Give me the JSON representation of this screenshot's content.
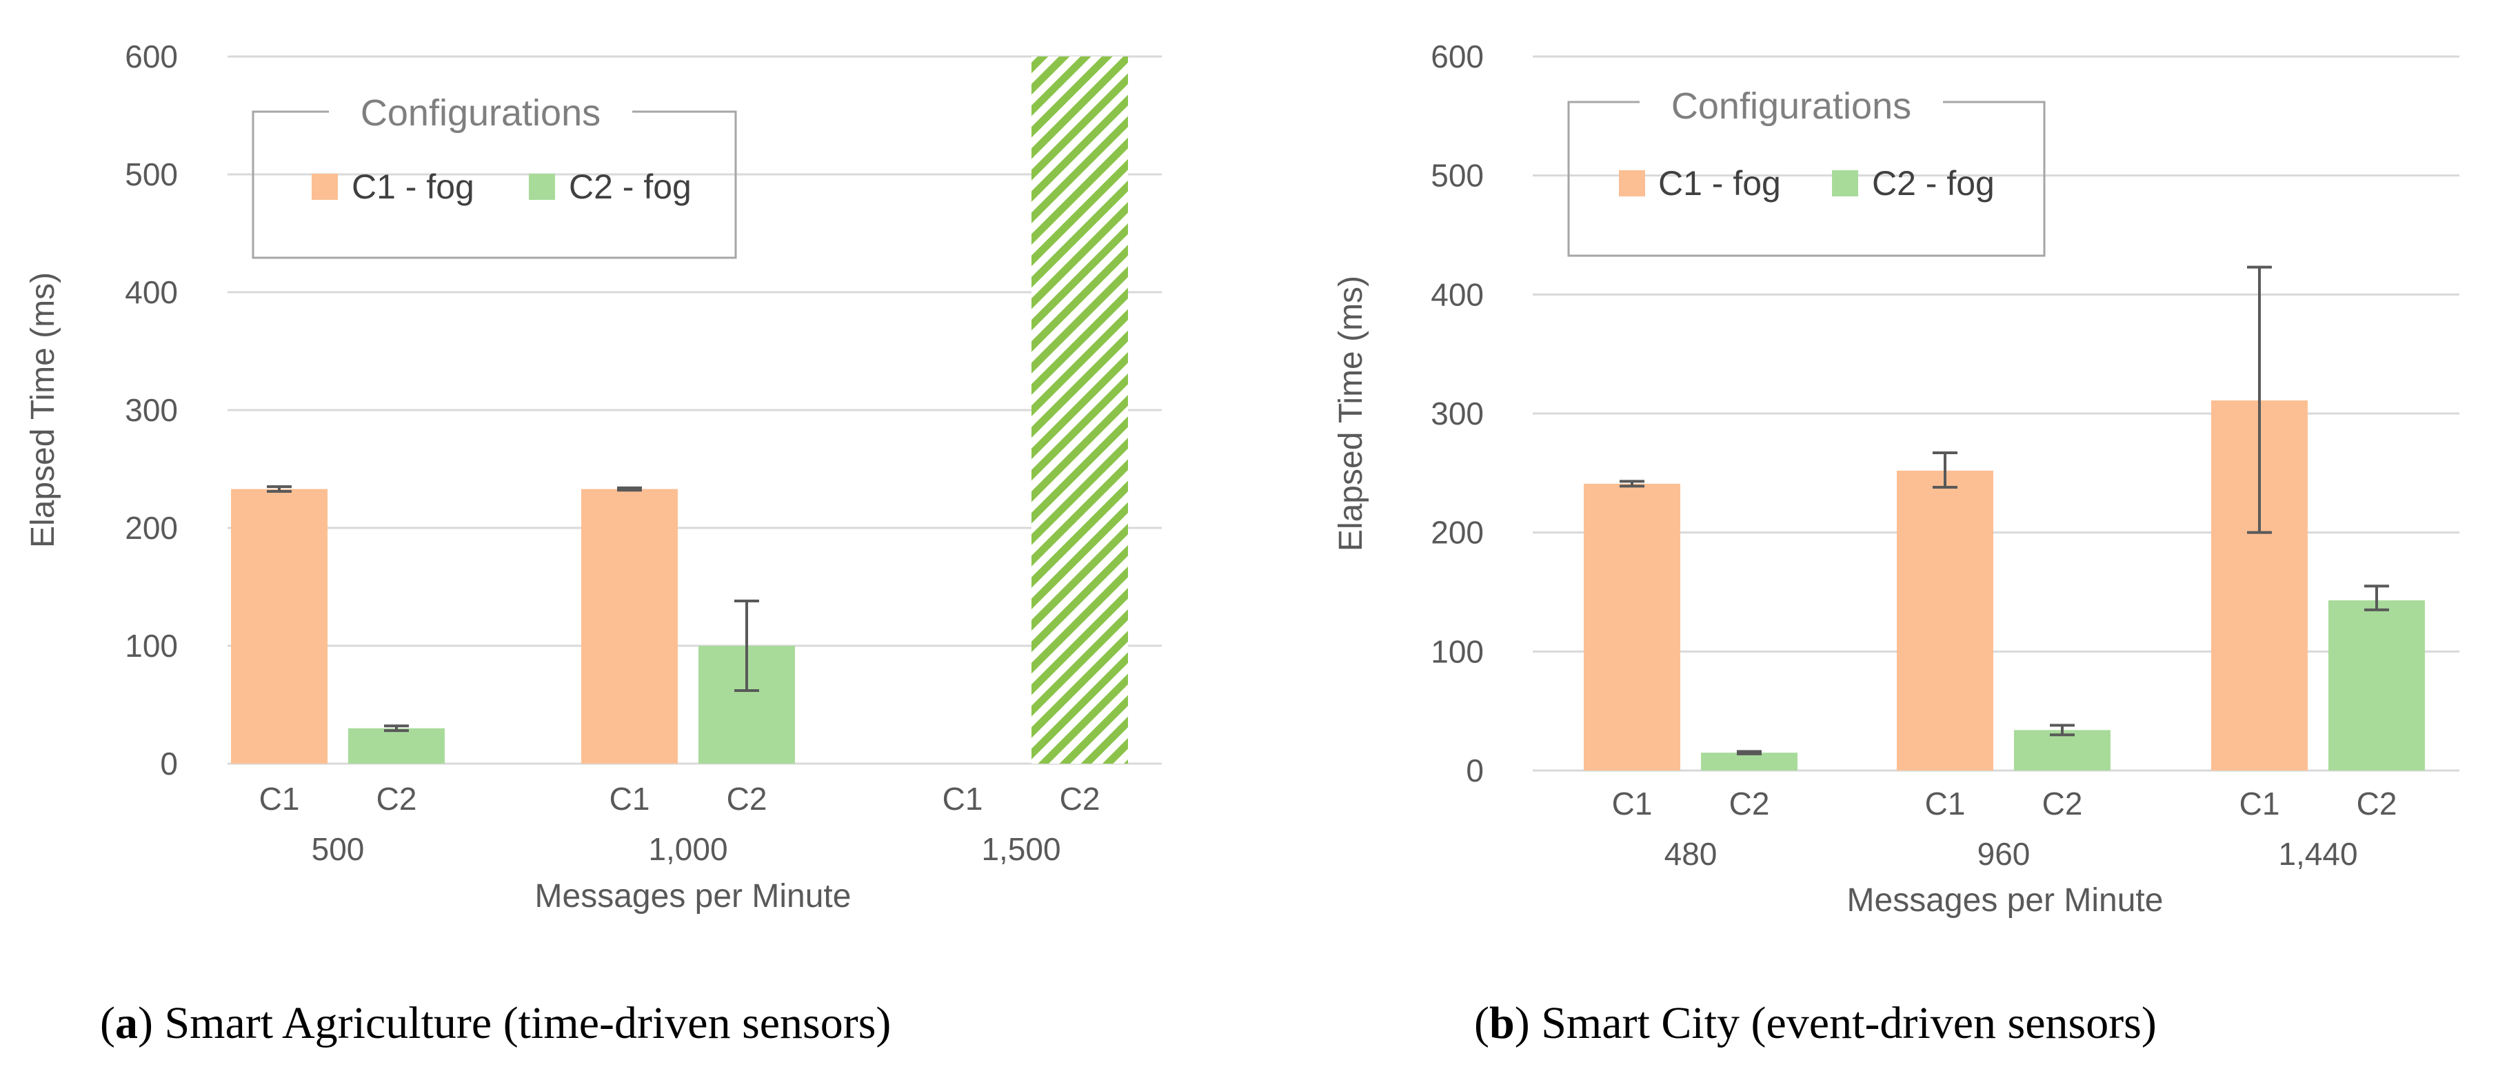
{
  "colors": {
    "c1_fog": "#FCBF93",
    "c2_fog": "#A8DB9A",
    "hatch": "#8BC34A",
    "grid": "#D9D9D9",
    "axis_text": "#595959",
    "error_bar": "#595959"
  },
  "chart_data": [
    {
      "type": "bar",
      "id": "a",
      "caption_letter": "a",
      "caption_text": " Smart Agriculture (time-driven sensors)",
      "xlabel": "Messages per Minute",
      "ylabel": "Elapsed Time (ms)",
      "ylim": [
        0,
        600
      ],
      "yticks": [
        0,
        100,
        200,
        300,
        400,
        500,
        600
      ],
      "grid": true,
      "legend": {
        "title": "Configurations",
        "placement": "top-left",
        "entries": [
          {
            "label": "C1 - fog",
            "color": "#FCBF93"
          },
          {
            "label": "C2 - fog",
            "color": "#A8DB9A"
          }
        ]
      },
      "groups": [
        {
          "label": "500",
          "bars": [
            {
              "sub": "C1",
              "series": "C1 - fog",
              "value": 233,
              "err_low": 231,
              "err_high": 235
            },
            {
              "sub": "C2",
              "series": "C2 - fog",
              "value": 30,
              "err_low": 28,
              "err_high": 32
            }
          ]
        },
        {
          "label": "1,000",
          "bars": [
            {
              "sub": "C1",
              "series": "C1 - fog",
              "value": 233,
              "err_low": 232,
              "err_high": 234
            },
            {
              "sub": "C2",
              "series": "C2 - fog",
              "value": 100,
              "err_low": 62,
              "err_high": 138
            }
          ]
        },
        {
          "label": "1,500",
          "bars": [
            {
              "sub": "C1",
              "series": "C1 - fog",
              "value": null
            },
            {
              "sub": "C2",
              "series": "C2 - fog",
              "value": 600,
              "hatched": true
            }
          ]
        }
      ]
    },
    {
      "type": "bar",
      "id": "b",
      "caption_letter": "b",
      "caption_text": " Smart City (event-driven sensors)",
      "xlabel": "Messages per Minute",
      "ylabel": "Elapsed Time (ms)",
      "ylim": [
        0,
        600
      ],
      "yticks": [
        0,
        100,
        200,
        300,
        400,
        500,
        600
      ],
      "grid": true,
      "legend": {
        "title": "Configurations",
        "placement": "top-left",
        "entries": [
          {
            "label": "C1 - fog",
            "color": "#FCBF93"
          },
          {
            "label": "C2 - fog",
            "color": "#A8DB9A"
          }
        ]
      },
      "groups": [
        {
          "label": "480",
          "bars": [
            {
              "sub": "C1",
              "series": "C1 - fog",
              "value": 241,
              "err_low": 239,
              "err_high": 243
            },
            {
              "sub": "C2",
              "series": "C2 - fog",
              "value": 15,
              "err_low": 14,
              "err_high": 16
            }
          ]
        },
        {
          "label": "960",
          "bars": [
            {
              "sub": "C1",
              "series": "C1 - fog",
              "value": 252,
              "err_low": 238,
              "err_high": 267
            },
            {
              "sub": "C2",
              "series": "C2 - fog",
              "value": 34,
              "err_low": 30,
              "err_high": 38
            }
          ]
        },
        {
          "label": "1,440",
          "bars": [
            {
              "sub": "C1",
              "series": "C1 - fog",
              "value": 311,
              "err_low": 200,
              "err_high": 423
            },
            {
              "sub": "C2",
              "series": "C2 - fog",
              "value": 143,
              "err_low": 135,
              "err_high": 155
            }
          ]
        }
      ]
    }
  ]
}
